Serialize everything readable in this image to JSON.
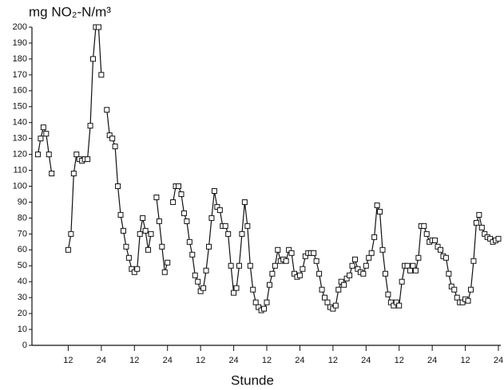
{
  "chart_data": {
    "type": "line",
    "title": "mg NO₂-N/m³",
    "xlabel": "Stunde",
    "x": [
      1,
      2,
      3,
      4,
      5,
      6,
      7,
      8,
      9,
      10,
      11,
      12,
      13,
      14,
      15,
      16,
      17,
      18,
      19,
      20,
      21,
      22,
      23,
      24,
      25,
      26,
      27,
      28,
      29,
      30,
      31,
      32,
      33,
      34,
      35,
      36,
      37,
      38,
      39,
      40,
      41,
      42,
      43,
      44,
      45,
      46,
      47,
      48,
      49,
      50,
      51,
      52,
      53,
      54,
      55,
      56,
      57,
      58,
      59,
      60,
      61,
      62,
      63,
      64,
      65,
      66,
      67,
      68,
      69,
      70,
      71,
      72,
      73,
      74,
      75,
      76,
      77,
      78,
      79,
      80,
      81,
      82,
      83,
      84,
      85,
      86,
      87,
      88,
      89,
      90,
      91,
      92,
      93,
      94,
      95,
      96,
      97,
      98,
      99,
      100,
      101,
      102,
      103,
      104,
      105,
      106,
      107,
      108,
      109,
      110,
      111,
      112,
      113,
      114,
      115,
      116,
      117,
      118,
      119,
      120,
      121,
      122,
      123,
      124,
      125,
      126,
      127,
      128,
      129,
      130,
      131,
      132,
      133,
      134,
      135,
      136,
      137,
      138,
      139,
      140,
      141,
      142,
      143,
      144,
      145,
      146,
      147,
      148,
      149,
      150,
      151,
      152,
      153,
      154,
      155,
      156,
      157,
      158,
      159,
      160,
      161,
      162,
      163,
      164,
      165,
      166,
      167,
      168
    ],
    "series": [
      {
        "color": "#111111",
        "values": [
          120,
          130,
          137,
          133,
          120,
          108,
          null,
          null,
          null,
          null,
          null,
          60,
          70,
          108,
          120,
          117,
          116,
          117,
          117,
          138,
          180,
          200,
          200,
          170,
          null,
          148,
          132,
          130,
          125,
          100,
          82,
          72,
          62,
          55,
          48,
          46,
          48,
          70,
          80,
          72,
          60,
          70,
          null,
          93,
          78,
          62,
          46,
          52,
          null,
          90,
          100,
          100,
          95,
          83,
          78,
          65,
          57,
          44,
          40,
          34,
          36,
          47,
          62,
          80,
          97,
          87,
          85,
          75,
          75,
          70,
          50,
          33,
          36,
          50,
          70,
          90,
          75,
          50,
          35,
          27,
          24,
          22,
          23,
          27,
          38,
          45,
          50,
          60,
          53,
          54,
          53,
          60,
          58,
          45,
          43,
          44,
          48,
          56,
          58,
          58,
          58,
          53,
          45,
          35,
          30,
          27,
          24,
          23,
          25,
          35,
          40,
          38,
          42,
          44,
          50,
          54,
          48,
          46,
          45,
          50,
          55,
          58,
          68,
          88,
          84,
          60,
          45,
          32,
          27,
          25,
          27,
          25,
          40,
          50,
          50,
          47,
          50,
          47,
          55,
          75,
          75,
          70,
          65,
          66,
          66,
          62,
          60,
          56,
          55,
          45,
          37,
          35,
          30,
          27,
          27,
          29,
          28,
          35,
          53,
          77,
          82,
          74,
          70,
          68,
          67,
          65,
          66,
          67
        ]
      }
    ],
    "xlim": [
      0,
      168
    ],
    "xticks": [
      12,
      24,
      {
        "value": 36,
        "label": "12"
      },
      {
        "value": 48,
        "label": "24"
      },
      {
        "value": 60,
        "label": "12"
      },
      {
        "value": 72,
        "label": "24"
      },
      {
        "value": 84,
        "label": "12"
      },
      {
        "value": 96,
        "label": "24"
      },
      {
        "value": 108,
        "label": "12"
      },
      {
        "value": 120,
        "label": "24"
      },
      {
        "value": 132,
        "label": "12"
      },
      {
        "value": 144,
        "label": "24"
      },
      {
        "value": 156,
        "label": "12"
      },
      {
        "value": 168,
        "label": "24"
      }
    ],
    "ylim": [
      0,
      200
    ],
    "yticks": [
      0,
      10,
      20,
      30,
      40,
      50,
      60,
      70,
      80,
      90,
      100,
      110,
      120,
      130,
      140,
      150,
      160,
      170,
      180,
      190,
      200
    ],
    "grid": false
  }
}
